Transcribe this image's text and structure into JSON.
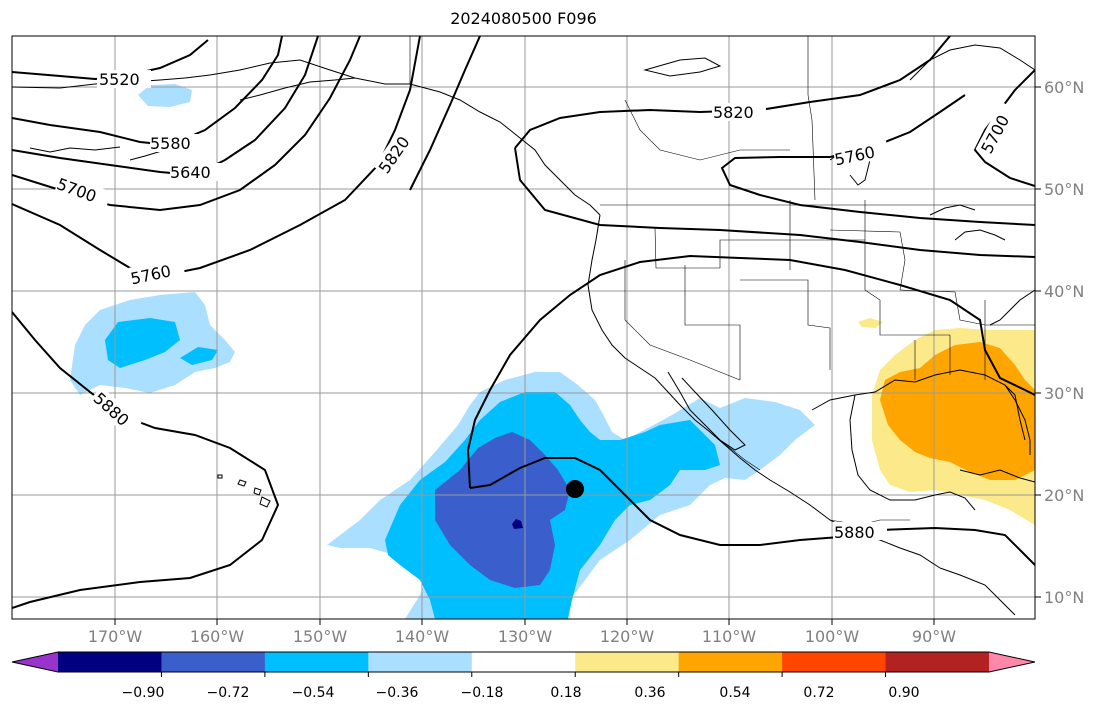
{
  "title": "2024080500 F096",
  "lon_labels": [
    "170°W",
    "160°W",
    "150°W",
    "140°W",
    "130°W",
    "120°W",
    "110°W",
    "100°W",
    "90°W"
  ],
  "lat_labels": [
    "60°N",
    "50°N",
    "40°N",
    "30°N",
    "20°N",
    "10°N"
  ],
  "contours": {
    "c5520": "5520",
    "c5580": "5580",
    "c5640": "5640",
    "c5700a": "5700",
    "c5760a": "5760",
    "c5820a": "5820",
    "c5820b": "5820",
    "c5760b": "5760",
    "c5700b": "5700",
    "c5880a": "5880",
    "c5880b": "5880"
  },
  "colorbar": {
    "ticks": [
      "−0.90",
      "−0.72",
      "−0.54",
      "−0.36",
      "−0.18",
      "0.18",
      "0.36",
      "0.54",
      "0.72",
      "0.90"
    ],
    "colors": [
      "#9933cc",
      "#000080",
      "#3a5fcd",
      "#00bfff",
      "#abdfff",
      "#ffffff",
      "#fbe98a",
      "#ffa500",
      "#ff4500",
      "#b22222",
      "#ff88aa"
    ]
  },
  "marker": {
    "color": "#000000"
  }
}
